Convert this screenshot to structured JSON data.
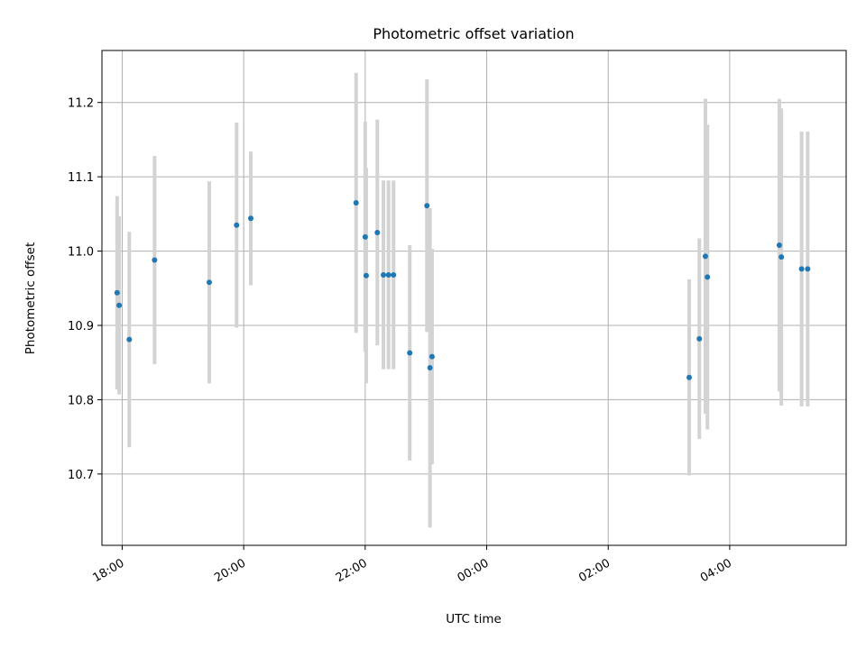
{
  "chart_data": {
    "type": "scatter",
    "title": "Photometric offset variation",
    "xlabel": "UTC time",
    "ylabel": "Photometric offset",
    "x_unit": "UTC",
    "xlim": [
      "17:40",
      "05:55 (+1 day)"
    ],
    "ylim": [
      10.604,
      11.27
    ],
    "x_ticks": [
      {
        "time": "18:00",
        "label": "18:00"
      },
      {
        "time": "20:00",
        "label": "20:00"
      },
      {
        "time": "22:00",
        "label": "22:00"
      },
      {
        "time": "00:00 (+1 day)",
        "label": "00:00"
      },
      {
        "time": "02:00 (+1 day)",
        "label": "02:00"
      },
      {
        "time": "04:00 (+1 day)",
        "label": "04:00"
      }
    ],
    "y_ticks": [
      10.7,
      10.8,
      10.9,
      11.0,
      11.1,
      11.2
    ],
    "grid": true,
    "marker_color": "#1f77b4",
    "errorbar_color": "#d3d3d3",
    "points": [
      {
        "time": "17:55",
        "y": 10.944,
        "yerr": 0.13
      },
      {
        "time": "17:57",
        "y": 10.927,
        "yerr": 0.12
      },
      {
        "time": "18:07",
        "y": 10.881,
        "yerr": 0.145
      },
      {
        "time": "18:32",
        "y": 10.988,
        "yerr": 0.14
      },
      {
        "time": "19:26",
        "y": 10.958,
        "yerr": 0.136
      },
      {
        "time": "19:53",
        "y": 11.035,
        "yerr": 0.138
      },
      {
        "time": "20:07",
        "y": 11.044,
        "yerr": 0.09
      },
      {
        "time": "21:51",
        "y": 11.065,
        "yerr": 0.175
      },
      {
        "time": "22:00",
        "y": 11.019,
        "yerr": 0.155
      },
      {
        "time": "22:01",
        "y": 10.967,
        "yerr": 0.145
      },
      {
        "time": "22:12",
        "y": 11.025,
        "yerr": 0.152
      },
      {
        "time": "22:18",
        "y": 10.968,
        "yerr": 0.127
      },
      {
        "time": "22:23",
        "y": 10.968,
        "yerr": 0.127
      },
      {
        "time": "22:28",
        "y": 10.968,
        "yerr": 0.127
      },
      {
        "time": "22:44",
        "y": 10.863,
        "yerr": 0.145
      },
      {
        "time": "23:01",
        "y": 11.061,
        "yerr": 0.17
      },
      {
        "time": "23:04",
        "y": 10.843,
        "yerr": 0.215
      },
      {
        "time": "23:06",
        "y": 10.858,
        "yerr": 0.145
      },
      {
        "time": "03:20 (+1 day)",
        "y": 10.83,
        "yerr": 0.132
      },
      {
        "time": "03:30 (+1 day)",
        "y": 10.882,
        "yerr": 0.135
      },
      {
        "time": "03:36 (+1 day)",
        "y": 10.993,
        "yerr": 0.212
      },
      {
        "time": "03:38 (+1 day)",
        "y": 10.965,
        "yerr": 0.205
      },
      {
        "time": "04:49 (+1 day)",
        "y": 11.008,
        "yerr": 0.197
      },
      {
        "time": "04:51 (+1 day)",
        "y": 10.992,
        "yerr": 0.2
      },
      {
        "time": "05:11 (+1 day)",
        "y": 10.976,
        "yerr": 0.185
      },
      {
        "time": "05:17 (+1 day)",
        "y": 10.976,
        "yerr": 0.185
      }
    ]
  }
}
